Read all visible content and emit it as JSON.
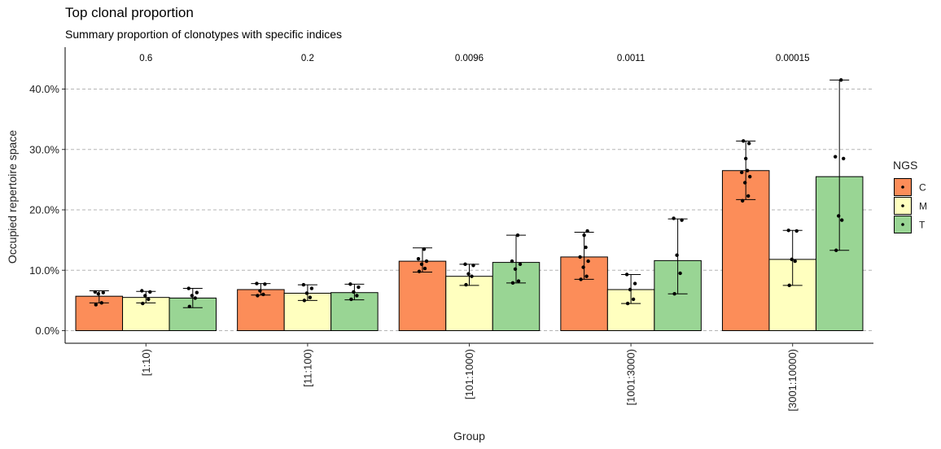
{
  "chart_data": {
    "type": "bar",
    "title": "Top clonal proportion",
    "subtitle": "Summary proportion of clonotypes with specific indices",
    "xlabel": "Group",
    "ylabel": "Occupied repertoire space",
    "ylim": [
      0,
      0.44
    ],
    "yticks": [
      0,
      0.1,
      0.2,
      0.3,
      0.4
    ],
    "ytick_labels": [
      "0.0%",
      "10.0%",
      "20.0%",
      "30.0%",
      "40.0%"
    ],
    "grid": "horizontal dashed",
    "categories": [
      "[1:10)",
      "[11:100)",
      "[101:1000)",
      "[1001:3000)",
      "[3001:10000)"
    ],
    "pvalues": [
      "0.6",
      "0.2",
      "0.0096",
      "0.0011",
      "0.00015"
    ],
    "legend": {
      "title": "NGS",
      "position": "right"
    },
    "series": [
      {
        "name": "C",
        "color": "#FC8D59",
        "values": [
          0.057,
          0.068,
          0.115,
          0.122,
          0.265
        ],
        "err_low": [
          0.046,
          0.059,
          0.097,
          0.085,
          0.217
        ],
        "err_high": [
          0.066,
          0.078,
          0.137,
          0.163,
          0.314
        ],
        "points": [
          [
            0.043,
            0.046,
            0.061,
            0.063,
            0.064
          ],
          [
            0.058,
            0.06,
            0.066,
            0.077,
            0.078
          ],
          [
            0.098,
            0.103,
            0.11,
            0.115,
            0.119,
            0.135
          ],
          [
            0.085,
            0.09,
            0.105,
            0.115,
            0.122,
            0.138,
            0.158,
            0.165
          ],
          [
            0.215,
            0.223,
            0.245,
            0.255,
            0.262,
            0.265,
            0.285,
            0.31,
            0.314
          ]
        ]
      },
      {
        "name": "M",
        "color": "#FFFFBF",
        "values": [
          0.055,
          0.062,
          0.09,
          0.068,
          0.118
        ],
        "err_low": [
          0.046,
          0.05,
          0.075,
          0.045,
          0.075
        ],
        "err_high": [
          0.065,
          0.076,
          0.11,
          0.093,
          0.166
        ],
        "points": [
          [
            0.045,
            0.052,
            0.058,
            0.064,
            0.066
          ],
          [
            0.05,
            0.055,
            0.062,
            0.07,
            0.076
          ],
          [
            0.076,
            0.09,
            0.094,
            0.108,
            0.11
          ],
          [
            0.045,
            0.052,
            0.068,
            0.078,
            0.093
          ],
          [
            0.075,
            0.115,
            0.118,
            0.165,
            0.166
          ]
        ]
      },
      {
        "name": "T",
        "color": "#99D594",
        "values": [
          0.054,
          0.063,
          0.113,
          0.116,
          0.255
        ],
        "err_low": [
          0.038,
          0.051,
          0.079,
          0.061,
          0.133
        ],
        "err_high": [
          0.07,
          0.077,
          0.158,
          0.185,
          0.415
        ],
        "points": [
          [
            0.04,
            0.054,
            0.058,
            0.063,
            0.07
          ],
          [
            0.052,
            0.058,
            0.064,
            0.072,
            0.077
          ],
          [
            0.079,
            0.082,
            0.102,
            0.11,
            0.115,
            0.158
          ],
          [
            0.061,
            0.095,
            0.125,
            0.183,
            0.186
          ],
          [
            0.133,
            0.183,
            0.19,
            0.285,
            0.288,
            0.415
          ]
        ]
      }
    ]
  }
}
